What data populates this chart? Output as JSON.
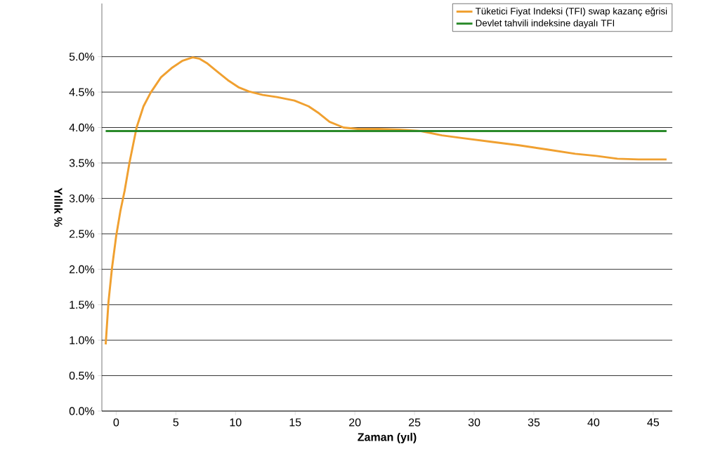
{
  "chart_data": {
    "type": "line",
    "xlabel": "Zaman (yıl)",
    "ylabel": "Yıllık %",
    "xlim": [
      -1.2,
      46.6
    ],
    "ylim": [
      0,
      5.75
    ],
    "xticks": [
      0,
      5,
      10,
      15,
      20,
      25,
      30,
      35,
      40,
      45
    ],
    "yticks": [
      {
        "value": 0,
        "label": "0.0%"
      },
      {
        "value": 0.5,
        "label": "0.5%"
      },
      {
        "value": 1,
        "label": "1.0%"
      },
      {
        "value": 1.5,
        "label": "1.5%"
      },
      {
        "value": 2,
        "label": "2.0%"
      },
      {
        "value": 2.5,
        "label": "2.5%"
      },
      {
        "value": 3,
        "label": "3.0%"
      },
      {
        "value": 3.5,
        "label": "3.5%"
      },
      {
        "value": 4,
        "label": "4.0%"
      },
      {
        "value": 4.5,
        "label": "4.5%"
      },
      {
        "value": 5,
        "label": "5.0%"
      }
    ],
    "grid": "y",
    "legend": "top right",
    "marker": "none",
    "line_style": "solid",
    "series": [
      {
        "name": "Tüketici Fiyat Indeksi (TFI) swap kazanç eğrisi",
        "color": "#f0a030",
        "x": [
          -0.88,
          -0.65,
          -0.35,
          0,
          0.35,
          0.71,
          1.12,
          1.71,
          2.29,
          2.88,
          3.76,
          4.65,
          5.53,
          6.41,
          7.0,
          7.59,
          8.47,
          9.35,
          10.24,
          11.12,
          12.29,
          13.47,
          14.94,
          16.12,
          17.0,
          17.88,
          19.06,
          20.24,
          22.0,
          23.76,
          25.53,
          27.29,
          29.06,
          31.41,
          33.76,
          36.12,
          38.47,
          40.24,
          42.0,
          43.76,
          46.12
        ],
        "values": [
          0.94,
          1.53,
          2.02,
          2.47,
          2.82,
          3.11,
          3.51,
          4.0,
          4.3,
          4.49,
          4.71,
          4.84,
          4.94,
          4.99,
          4.97,
          4.91,
          4.79,
          4.67,
          4.57,
          4.51,
          4.46,
          4.43,
          4.38,
          4.3,
          4.2,
          4.08,
          4.0,
          3.98,
          3.98,
          3.97,
          3.95,
          3.89,
          3.85,
          3.8,
          3.75,
          3.69,
          3.63,
          3.6,
          3.56,
          3.55,
          3.55
        ]
      },
      {
        "name": "Devlet tahvili indeksine dayalı TFI",
        "color": "#2a8a2a",
        "x": [
          -0.88,
          46.12
        ],
        "values": [
          3.95,
          3.95
        ]
      }
    ]
  }
}
